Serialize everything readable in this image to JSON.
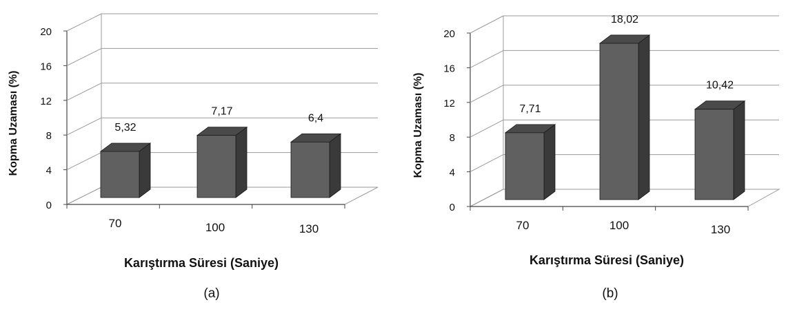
{
  "chart_data": [
    {
      "type": "bar",
      "panel_label": "(a)",
      "categories": [
        "70",
        "100",
        "130"
      ],
      "values": [
        5.32,
        7.17,
        6.4
      ],
      "data_labels": [
        "5,32",
        "7,17",
        "6,4"
      ],
      "xlabel": "Karıştırma  Süresi (Saniye)",
      "ylabel": "Kopma Uzaması (%)",
      "yticks": [
        "0",
        "4",
        "8",
        "12",
        "16",
        "20"
      ],
      "ylim": [
        0,
        20
      ],
      "grid": true,
      "style": "3d-column"
    },
    {
      "type": "bar",
      "panel_label": "(b)",
      "categories": [
        "70",
        "100",
        "130"
      ],
      "values": [
        7.71,
        18.02,
        10.42
      ],
      "data_labels": [
        "7,71",
        "18,02",
        "10,42"
      ],
      "xlabel": "Karıştırma  Süresi (Saniye)",
      "ylabel": "Kopma Uzaması (%)",
      "yticks": [
        "0",
        "4",
        "8",
        "12",
        "16",
        "20"
      ],
      "ylim": [
        0,
        20
      ],
      "grid": true,
      "style": "3d-column"
    }
  ],
  "colors": {
    "bar_front": "#606060",
    "bar_top": "#4a4a4a",
    "bar_side": "#3a3a3a",
    "bar_edge": "#1a1a1a",
    "grid": "#9a9a9a",
    "axis": "#444444"
  }
}
